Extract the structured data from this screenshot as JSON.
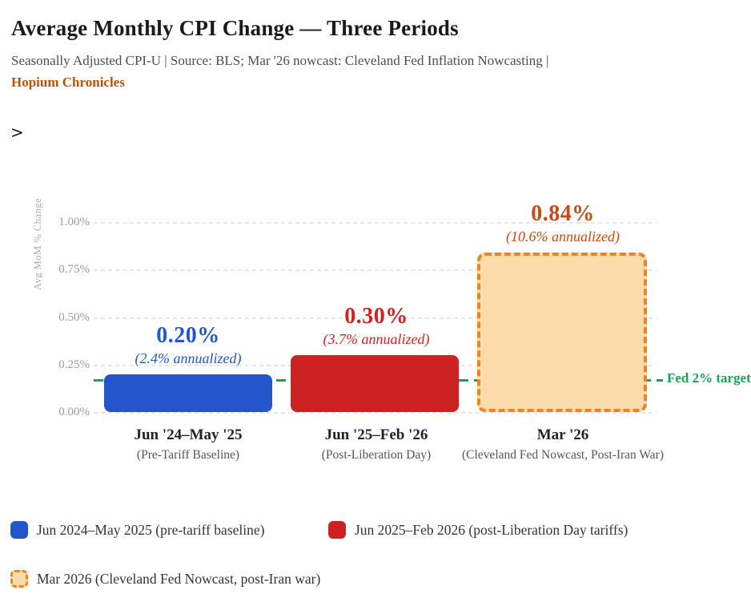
{
  "header": {
    "title": "Average Monthly CPI Change — Three Periods",
    "subtitle": "Seasonally Adjusted CPI-U  |  Source: BLS; Mar '26 nowcast: Cleveland Fed Inflation Nowcasting  |",
    "brand": "Hopium Chronicles",
    "expander": ">"
  },
  "chart_data": {
    "type": "bar",
    "title": "Average Monthly CPI Change — Three Periods",
    "ylabel": "Avg MoM % Change",
    "ylim": [
      0,
      1.05
    ],
    "yticks_top_to_bottom": [
      "1.00%",
      "0.75%",
      "0.50%",
      "0.25%",
      "0.00%"
    ],
    "grid": "dashed horizontal",
    "categories": [
      "Jun '24–May '25",
      "Jun '25–Feb '26",
      "Mar '26"
    ],
    "category_sublabels": [
      "(Pre-Tariff Baseline)",
      "(Post-Liberation Day)",
      "(Cleveland Fed Nowcast, Post-Iran War)"
    ],
    "bars": [
      {
        "value": 0.2,
        "value_label": "0.20%",
        "annualized_label": "(2.4% annualized)",
        "fill": "#2356cb",
        "label_color": "#2356cb"
      },
      {
        "value": 0.3,
        "value_label": "0.30%",
        "annualized_label": "(3.7% annualized)",
        "fill": "#cc2222",
        "label_color": "#cc2222"
      },
      {
        "value": 0.84,
        "value_label": "0.84%",
        "annualized_label": "(10.6% annualized)",
        "fill": "#fcdcab",
        "border_color": "#f58220",
        "label_color": "#c54a14"
      }
    ],
    "fed_line": {
      "value": 0.167,
      "label": "Fed 2% target",
      "color": "#1ba158",
      "style": "dashed"
    }
  },
  "legend": {
    "items": [
      {
        "label": "Jun 2024–May 2025 (pre-tariff baseline)",
        "swatch_fill": "#2356cb"
      },
      {
        "label": "Jun 2025–Feb 2026 (post-Liberation Day tariffs)",
        "swatch_fill": "#cc2222"
      },
      {
        "label": "Mar 2026 (Cleveland Fed Nowcast, post-Iran war)",
        "swatch_fill": "#fcdcab",
        "swatch_border": "#f58220"
      }
    ]
  }
}
